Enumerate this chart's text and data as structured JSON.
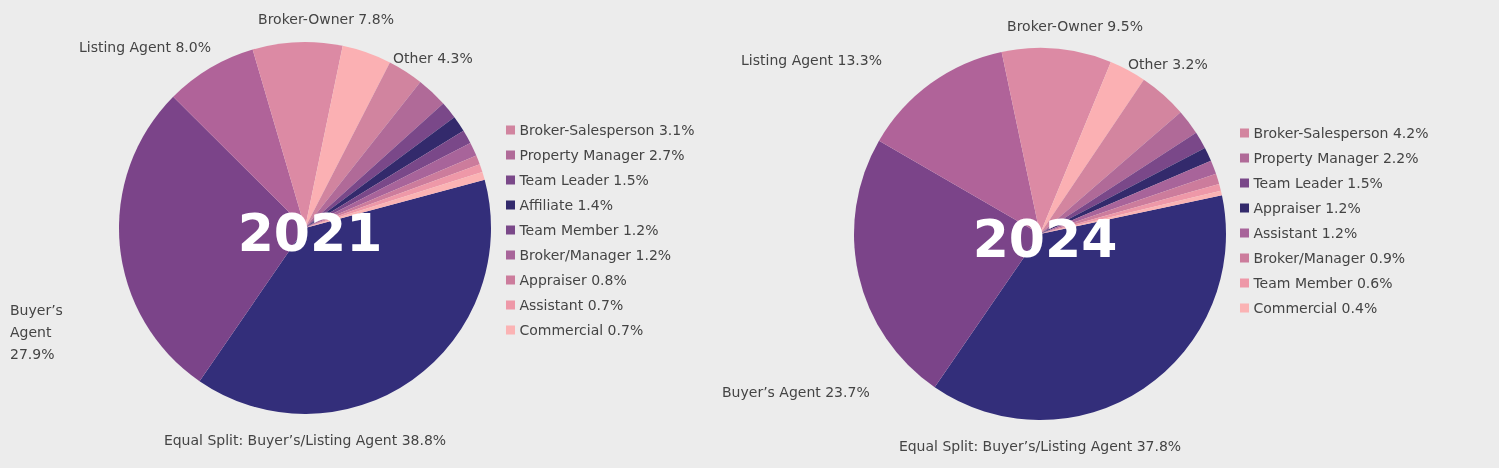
{
  "chart_data": [
    {
      "type": "pie",
      "title": "2021",
      "legend": "right",
      "categories": [
        "Equal Split: Buyer’s/Listing Agent",
        "Buyer’s Agent",
        "Listing Agent",
        "Broker-Owner",
        "Other",
        "Broker-Salesperson",
        "Property Manager",
        "Team Leader",
        "Affiliate",
        "Team Member",
        "Broker/Manager",
        "Appraiser",
        "Assistant",
        "Commercial"
      ],
      "values": [
        38.8,
        27.9,
        8.0,
        7.8,
        4.3,
        3.1,
        2.7,
        1.5,
        1.4,
        1.2,
        1.2,
        0.8,
        0.7,
        0.7
      ],
      "value_labels": [
        "38.8%",
        "27.9%",
        "8.0%",
        "7.8%",
        "4.3%",
        "3.1%",
        "2.7%",
        "1.5%",
        "1.4%",
        "1.2%",
        "1.2%",
        "0.8%",
        "0.7%",
        "0.7%"
      ],
      "colors": [
        "#332e7a",
        "#7b4489",
        "#b06399",
        "#dc8aa4",
        "#fbb0b3",
        "#d1849f",
        "#b06a98",
        "#7a4889",
        "#332a6c",
        "#7a4889",
        "#a8649a",
        "#cc7c9c",
        "#ee98a8",
        "#fbb3b4"
      ]
    },
    {
      "type": "pie",
      "title": "2024",
      "legend": "right",
      "categories": [
        "Equal Split: Buyer’s/Listing Agent",
        "Buyer’s Agent",
        "Listing Agent",
        "Broker-Owner",
        "Other",
        "Broker-Salesperson",
        "Property Manager",
        "Team Leader",
        "Appraiser",
        "Assistant",
        "Broker/Manager",
        "Team Member",
        "Commercial"
      ],
      "values": [
        37.8,
        23.7,
        13.3,
        9.5,
        3.2,
        4.2,
        2.2,
        1.5,
        1.2,
        1.2,
        0.9,
        0.6,
        0.4
      ],
      "value_labels": [
        "37.8%",
        "23.7%",
        "13.3%",
        "9.5%",
        "3.2%",
        "4.2%",
        "2.2%",
        "1.5%",
        "1.2%",
        "1.2%",
        "0.9%",
        "0.6%",
        "0.4%"
      ],
      "colors": [
        "#332e7a",
        "#7b4489",
        "#b06399",
        "#dc8aa4",
        "#fbb0b3",
        "#d3859f",
        "#b06a98",
        "#7a4889",
        "#332a6c",
        "#a8649a",
        "#cc7c9c",
        "#ee98a8",
        "#fbb3b4"
      ]
    }
  ]
}
